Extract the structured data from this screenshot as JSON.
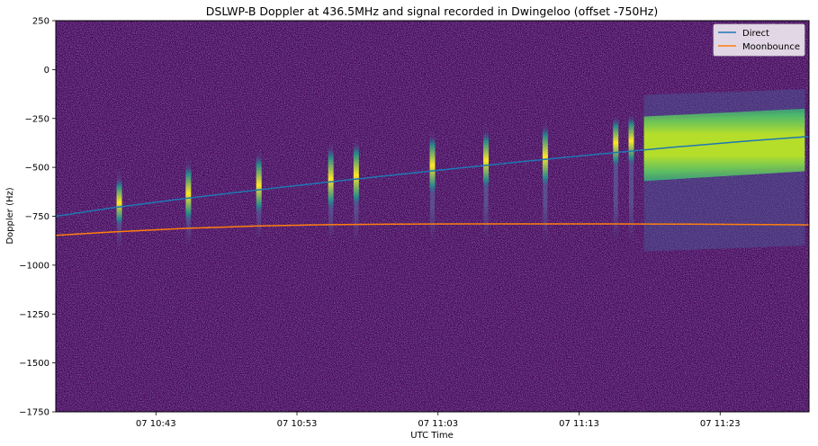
{
  "chart_data": {
    "type": "spectrogram",
    "title": "DSLWP-B Doppler at 436.5MHz and signal recorded in Dwingeloo (offset -750Hz)",
    "xlabel": "UTC Time",
    "ylabel": "Doppler (Hz)",
    "xlim_minutes": [
      635.9,
      689.3
    ],
    "ylim": [
      -1750,
      250
    ],
    "grid": false,
    "legend_position": "top-right",
    "x_ticks": [
      {
        "minute": 643,
        "label": "07 10:43"
      },
      {
        "minute": 653,
        "label": "07 10:53"
      },
      {
        "minute": 663,
        "label": "07 11:03"
      },
      {
        "minute": 673,
        "label": "07 11:13"
      },
      {
        "minute": 683,
        "label": "07 11:23"
      }
    ],
    "y_ticks": [
      250,
      0,
      -250,
      -500,
      -750,
      -1000,
      -1250,
      -1500,
      -1750
    ],
    "colors": {
      "background": "#440154",
      "noise_high": "#46317e",
      "signal_mid": "#21918c",
      "signal_high": "#fde725",
      "direct": "#1f77b4",
      "moonbounce": "#ff7f0e"
    },
    "series": [
      {
        "name": "Direct",
        "color": "#1f77b4",
        "x": [
          635.9,
          640,
          645,
          650,
          655,
          660,
          665,
          670,
          675,
          680,
          685,
          689.3
        ],
        "y": [
          -750,
          -706,
          -660,
          -617,
          -577,
          -538,
          -500,
          -463,
          -428,
          -395,
          -365,
          -342
        ]
      },
      {
        "name": "Moonbounce",
        "color": "#ff7f0e",
        "x": [
          635.9,
          640,
          645,
          650,
          655,
          660,
          665,
          670,
          675,
          680,
          685,
          689.3
        ],
        "y": [
          -848,
          -830,
          -812,
          -800,
          -793,
          -790,
          -789,
          -789,
          -789,
          -790,
          -792,
          -794
        ]
      }
    ],
    "signal_bursts": [
      {
        "minute": 640.4,
        "y_top": -500,
        "y_bottom": -920,
        "core": [
          -560,
          -800
        ]
      },
      {
        "minute": 645.3,
        "y_top": -450,
        "y_bottom": -900,
        "core": [
          -490,
          -780
        ]
      },
      {
        "minute": 650.3,
        "y_top": -400,
        "y_bottom": -870,
        "core": [
          -440,
          -740
        ]
      },
      {
        "minute": 655.4,
        "y_top": -360,
        "y_bottom": -880,
        "core": [
          -400,
          -720
        ]
      },
      {
        "minute": 657.2,
        "y_top": -340,
        "y_bottom": -880,
        "core": [
          -380,
          -700
        ]
      },
      {
        "minute": 662.6,
        "y_top": -300,
        "y_bottom": -880,
        "core": [
          -340,
          -640
        ]
      },
      {
        "minute": 666.4,
        "y_top": -280,
        "y_bottom": -870,
        "core": [
          -320,
          -610
        ]
      },
      {
        "minute": 670.6,
        "y_top": -250,
        "y_bottom": -880,
        "core": [
          -290,
          -600
        ]
      },
      {
        "minute": 675.6,
        "y_top": -220,
        "y_bottom": -880,
        "core": [
          -250,
          -500
        ]
      },
      {
        "minute": 676.7,
        "y_top": -210,
        "y_bottom": -880,
        "core": [
          -240,
          -490
        ]
      }
    ],
    "continuous_signal": {
      "x_start": 677.6,
      "x_end": 689.0,
      "y_top_start": -130,
      "y_top_end": -100,
      "y_bottom_start": -930,
      "y_bottom_end": -900,
      "core_top_start": -240,
      "core_top_end": -200,
      "core_bottom_start": -570,
      "core_bottom_end": -520
    }
  }
}
